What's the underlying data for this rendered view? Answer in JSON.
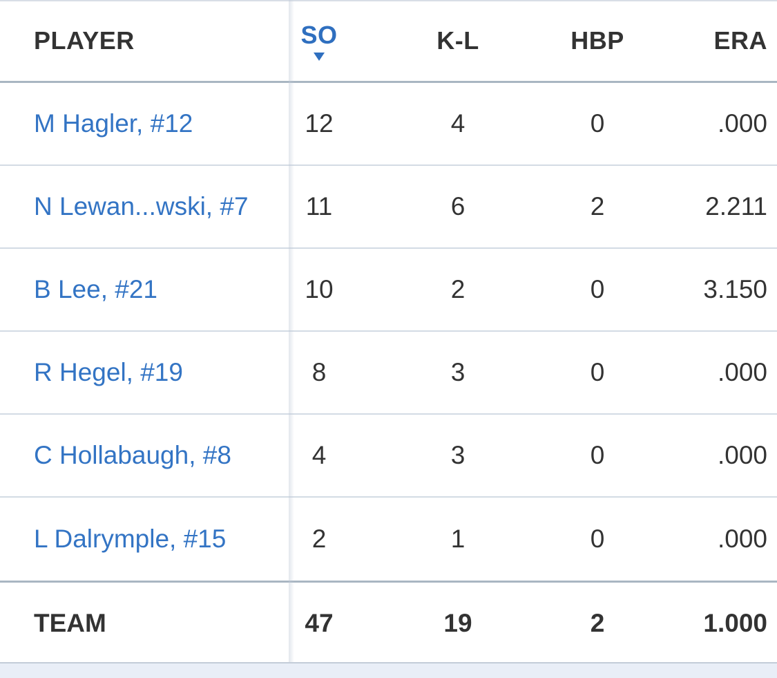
{
  "columns": {
    "player": "PLAYER",
    "so": "SO",
    "kl": "K-L",
    "hbp": "HBP",
    "era": "ERA"
  },
  "rows": [
    {
      "player": "M Hagler, #12",
      "so": "12",
      "kl": "4",
      "hbp": "0",
      "era": ".000"
    },
    {
      "player": "N Lewan...wski, #7",
      "so": "11",
      "kl": "6",
      "hbp": "2",
      "era": "2.211"
    },
    {
      "player": "B Lee, #21",
      "so": "10",
      "kl": "2",
      "hbp": "0",
      "era": "3.150"
    },
    {
      "player": "R Hegel, #19",
      "so": "8",
      "kl": "3",
      "hbp": "0",
      "era": ".000"
    },
    {
      "player": "C Hollabaugh, #8",
      "so": "4",
      "kl": "3",
      "hbp": "0",
      "era": ".000"
    },
    {
      "player": "L Dalrymple, #15",
      "so": "2",
      "kl": "1",
      "hbp": "0",
      "era": ".000"
    }
  ],
  "team": {
    "label": "TEAM",
    "so": "47",
    "kl": "19",
    "hbp": "2",
    "era": "1.000"
  },
  "colors": {
    "link": "#3374c4",
    "accent": "#2f6fbf",
    "text": "#333333"
  }
}
